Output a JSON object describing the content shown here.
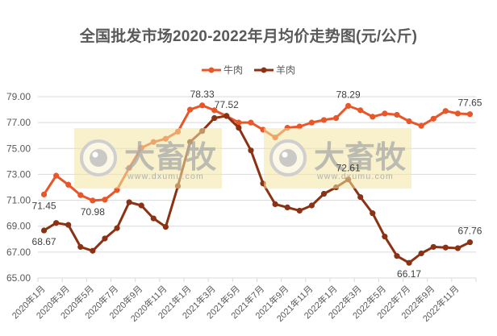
{
  "chart_data": {
    "type": "line",
    "title": "全国批发市场2020-2022年月均价走势图(元/公斤)",
    "xlabel": "",
    "ylabel": "",
    "ylim": [
      65,
      79
    ],
    "yticks": [
      "65.00",
      "67.00",
      "69.00",
      "71.00",
      "73.00",
      "75.00",
      "77.00",
      "79.00"
    ],
    "grid": true,
    "legend_position": "top",
    "categories": [
      "2020年1月",
      "2020年2月",
      "2020年3月",
      "2020年4月",
      "2020年5月",
      "2020年6月",
      "2020年7月",
      "2020年8月",
      "2020年9月",
      "2020年10月",
      "2020年11月",
      "2020年12月",
      "2021年1月",
      "2021年2月",
      "2021年3月",
      "2021年4月",
      "2021年5月",
      "2021年6月",
      "2021年7月",
      "2021年8月",
      "2021年9月",
      "2021年10月",
      "2021年11月",
      "2021年12月",
      "2022年1月",
      "2022年2月",
      "2022年3月",
      "2022年4月",
      "2022年5月",
      "2022年6月",
      "2022年7月",
      "2022年8月",
      "2022年9月",
      "2022年10月",
      "2022年11月",
      "2022年12月"
    ],
    "xtick_labels": [
      "2020年1月",
      "2020年3月",
      "2020年5月",
      "2020年7月",
      "2020年9月",
      "2020年11月",
      "2021年1月",
      "2021年3月",
      "2021年5月",
      "2021年7月",
      "2021年9月",
      "2021年11月",
      "2022年1月",
      "2022年3月",
      "2022年5月",
      "2022年7月",
      "2022年9月",
      "2022年11月"
    ],
    "series": [
      {
        "name": "牛肉",
        "color": "#E8572A",
        "values": [
          71.45,
          72.9,
          72.2,
          71.4,
          70.98,
          71.05,
          71.8,
          73.5,
          75.05,
          75.5,
          75.75,
          76.3,
          78.0,
          78.33,
          77.95,
          77.5,
          77.0,
          77.0,
          76.45,
          75.85,
          76.6,
          76.7,
          77.0,
          77.2,
          77.35,
          78.29,
          77.95,
          77.45,
          77.7,
          77.6,
          77.1,
          76.75,
          77.3,
          77.9,
          77.7,
          77.65
        ],
        "labels": [
          {
            "index": 0,
            "text": "71.45",
            "pos": "below"
          },
          {
            "index": 4,
            "text": "70.98",
            "pos": "below"
          },
          {
            "index": 13,
            "text": "78.33",
            "pos": "above"
          },
          {
            "index": 25,
            "text": "78.29",
            "pos": "above"
          },
          {
            "index": 35,
            "text": "77.65",
            "pos": "above"
          }
        ]
      },
      {
        "name": "羊肉",
        "color": "#8B3214",
        "values": [
          68.67,
          69.25,
          69.1,
          67.4,
          67.1,
          68.05,
          68.85,
          70.85,
          70.6,
          69.6,
          68.95,
          72.1,
          75.5,
          76.35,
          77.35,
          77.52,
          76.6,
          74.85,
          72.3,
          70.7,
          70.45,
          70.2,
          70.6,
          71.5,
          72.0,
          72.61,
          71.25,
          70.0,
          68.2,
          66.7,
          66.17,
          66.9,
          67.4,
          67.35,
          67.3,
          67.76
        ],
        "labels": [
          {
            "index": 0,
            "text": "68.67",
            "pos": "below"
          },
          {
            "index": 15,
            "text": "77.52",
            "pos": "above"
          },
          {
            "index": 25,
            "text": "72.61",
            "pos": "above"
          },
          {
            "index": 30,
            "text": "66.17",
            "pos": "below"
          },
          {
            "index": 35,
            "text": "67.76",
            "pos": "above"
          }
        ]
      }
    ]
  },
  "watermark": {
    "brand": "大畜牧",
    "url": "www.dxumu.com",
    "count": 2
  },
  "legend": {
    "items": [
      {
        "label": "牛肉",
        "color": "#E8572A"
      },
      {
        "label": "羊肉",
        "color": "#8B3214"
      }
    ]
  }
}
